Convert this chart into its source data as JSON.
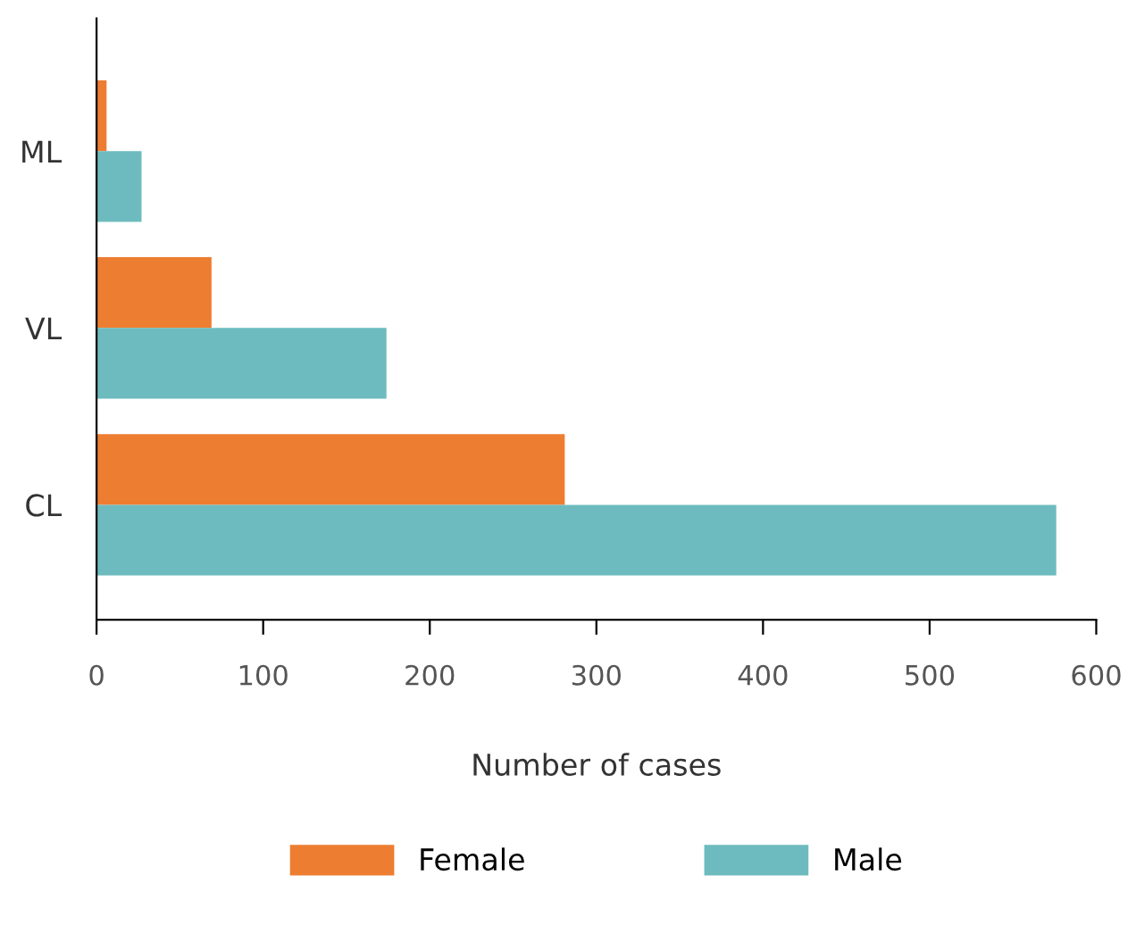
{
  "chart_data": {
    "type": "bar",
    "orientation": "horizontal",
    "xlabel": "Number of cases",
    "categories": [
      "ML",
      "VL",
      "CL"
    ],
    "series": [
      {
        "name": "Female",
        "color": "#ed7d31",
        "values": [
          6,
          69,
          281
        ]
      },
      {
        "name": "Male",
        "color": "#6dbbbe",
        "values": [
          27,
          174,
          576
        ]
      }
    ],
    "xlim": [
      0,
      600
    ],
    "xticks": [
      0,
      100,
      200,
      300,
      400,
      500,
      600
    ],
    "grid": false,
    "legend": "bottom"
  }
}
